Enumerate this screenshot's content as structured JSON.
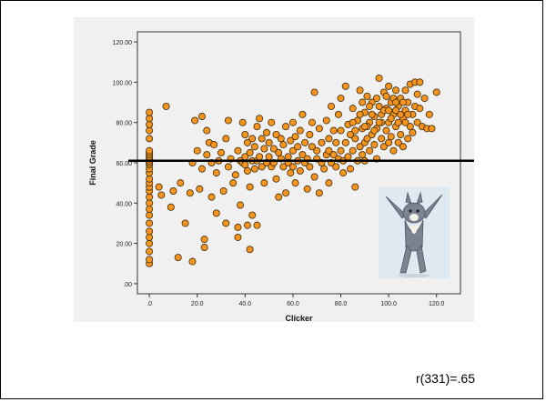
{
  "chart_data": {
    "type": "scatter",
    "xlabel": "Clicker",
    "ylabel": "Final Grade",
    "xlim": [
      -5,
      130
    ],
    "ylim": [
      -5,
      125
    ],
    "x_ticks": [
      ".0",
      "20.0",
      "40.0",
      "60.0",
      "80.0",
      "100.0",
      "120.0"
    ],
    "x_tick_values": [
      0,
      20,
      40,
      60,
      80,
      100,
      120
    ],
    "y_ticks": [
      ".00",
      "20.00",
      "40.00",
      "60.00",
      "80.00",
      "100.00",
      "120.00"
    ],
    "y_tick_values": [
      0,
      20,
      40,
      60,
      80,
      100,
      120
    ],
    "reference_line_y": 61,
    "marker_color": "#f7941d",
    "marker_edge": "#3a2a0a",
    "points": [
      [
        0,
        10
      ],
      [
        0,
        12
      ],
      [
        0,
        16
      ],
      [
        0,
        20
      ],
      [
        0,
        23
      ],
      [
        0,
        26
      ],
      [
        0,
        30
      ],
      [
        0,
        34
      ],
      [
        0,
        37
      ],
      [
        0,
        40
      ],
      [
        0,
        43
      ],
      [
        0,
        46
      ],
      [
        0,
        48
      ],
      [
        0,
        50
      ],
      [
        0,
        52
      ],
      [
        0,
        55
      ],
      [
        0,
        57
      ],
      [
        0,
        59
      ],
      [
        0,
        60
      ],
      [
        0,
        61
      ],
      [
        0,
        62
      ],
      [
        0,
        63
      ],
      [
        0,
        64
      ],
      [
        0,
        65
      ],
      [
        0,
        66
      ],
      [
        0,
        72
      ],
      [
        0,
        76
      ],
      [
        0,
        79
      ],
      [
        0,
        82
      ],
      [
        0,
        85
      ],
      [
        4,
        48
      ],
      [
        5,
        44
      ],
      [
        7,
        88
      ],
      [
        9,
        38
      ],
      [
        10,
        46
      ],
      [
        12,
        13
      ],
      [
        13,
        50
      ],
      [
        15,
        30
      ],
      [
        17,
        45
      ],
      [
        18,
        11
      ],
      [
        18,
        60
      ],
      [
        19,
        81
      ],
      [
        20,
        66
      ],
      [
        21,
        47
      ],
      [
        22,
        57
      ],
      [
        22,
        83
      ],
      [
        23,
        18
      ],
      [
        23,
        22
      ],
      [
        24,
        64
      ],
      [
        24,
        76
      ],
      [
        25,
        70
      ],
      [
        26,
        43
      ],
      [
        26,
        60
      ],
      [
        27,
        69
      ],
      [
        28,
        35
      ],
      [
        28,
        55
      ],
      [
        29,
        61
      ],
      [
        30,
        65
      ],
      [
        31,
        46
      ],
      [
        32,
        72
      ],
      [
        32,
        30
      ],
      [
        33,
        81
      ],
      [
        33,
        58
      ],
      [
        34,
        62
      ],
      [
        35,
        50
      ],
      [
        36,
        54
      ],
      [
        37,
        23
      ],
      [
        37,
        28
      ],
      [
        37,
        66
      ],
      [
        38,
        39
      ],
      [
        38,
        61
      ],
      [
        39,
        60
      ],
      [
        39,
        80
      ],
      [
        40,
        59
      ],
      [
        40,
        63
      ],
      [
        40,
        74
      ],
      [
        41,
        29
      ],
      [
        41,
        56
      ],
      [
        41,
        70
      ],
      [
        42,
        17
      ],
      [
        42,
        48
      ],
      [
        42,
        65
      ],
      [
        43,
        34
      ],
      [
        43,
        61
      ],
      [
        43,
        72
      ],
      [
        44,
        57
      ],
      [
        44,
        68
      ],
      [
        45,
        61
      ],
      [
        45,
        29
      ],
      [
        45,
        78
      ],
      [
        46,
        63
      ],
      [
        46,
        82
      ],
      [
        47,
        58
      ],
      [
        47,
        72
      ],
      [
        48,
        67
      ],
      [
        48,
        50
      ],
      [
        49,
        60
      ],
      [
        49,
        75
      ],
      [
        50,
        63
      ],
      [
        50,
        70
      ],
      [
        51,
        58
      ],
      [
        51,
        80
      ],
      [
        52,
        60
      ],
      [
        52,
        67
      ],
      [
        53,
        52
      ],
      [
        53,
        74
      ],
      [
        54,
        43
      ],
      [
        54,
        65
      ],
      [
        55,
        62
      ],
      [
        55,
        72
      ],
      [
        56,
        58
      ],
      [
        56,
        69
      ],
      [
        57,
        45
      ],
      [
        57,
        78
      ],
      [
        58,
        63
      ],
      [
        58,
        60
      ],
      [
        59,
        71
      ],
      [
        59,
        55
      ],
      [
        60,
        58
      ],
      [
        60,
        66
      ],
      [
        60,
        80
      ],
      [
        61,
        50
      ],
      [
        61,
        73
      ],
      [
        62,
        61
      ],
      [
        62,
        68
      ],
      [
        63,
        56
      ],
      [
        63,
        76
      ],
      [
        64,
        64
      ],
      [
        64,
        84
      ],
      [
        65,
        60
      ],
      [
        65,
        70
      ],
      [
        66,
        47
      ],
      [
        66,
        62
      ],
      [
        67,
        74
      ],
      [
        67,
        58
      ],
      [
        68,
        68
      ],
      [
        68,
        80
      ],
      [
        69,
        53
      ],
      [
        69,
        95
      ],
      [
        70,
        62
      ],
      [
        70,
        66
      ],
      [
        71,
        77
      ],
      [
        71,
        45
      ],
      [
        72,
        60
      ],
      [
        72,
        70
      ],
      [
        73,
        57
      ],
      [
        74,
        64
      ],
      [
        74,
        81
      ],
      [
        75,
        50
      ],
      [
        75,
        66
      ],
      [
        75,
        72
      ],
      [
        76,
        60
      ],
      [
        76,
        88
      ],
      [
        77,
        64
      ],
      [
        77,
        76
      ],
      [
        78,
        58
      ],
      [
        78,
        70
      ],
      [
        79,
        84
      ],
      [
        79,
        62
      ],
      [
        80,
        66
      ],
      [
        80,
        76
      ],
      [
        80,
        92
      ],
      [
        81,
        61
      ],
      [
        81,
        55
      ],
      [
        82,
        70
      ],
      [
        82,
        98
      ],
      [
        83,
        63
      ],
      [
        83,
        79
      ],
      [
        84,
        74
      ],
      [
        84,
        57
      ],
      [
        85,
        66
      ],
      [
        85,
        87
      ],
      [
        86,
        48
      ],
      [
        86,
        72
      ],
      [
        87,
        61
      ],
      [
        87,
        81
      ],
      [
        88,
        68
      ],
      [
        88,
        96
      ],
      [
        89,
        64
      ],
      [
        89,
        77
      ],
      [
        90,
        70
      ],
      [
        90,
        85
      ],
      [
        90,
        61
      ],
      [
        91,
        72
      ],
      [
        91,
        93
      ],
      [
        92,
        66
      ],
      [
        92,
        80
      ],
      [
        93,
        74
      ],
      [
        93,
        90
      ],
      [
        94,
        69
      ],
      [
        94,
        83
      ],
      [
        95,
        77
      ],
      [
        95,
        62
      ],
      [
        96,
        88
      ],
      [
        96,
        102
      ],
      [
        97,
        72
      ],
      [
        97,
        84
      ],
      [
        98,
        68
      ],
      [
        98,
        95
      ],
      [
        99,
        76
      ],
      [
        99,
        87
      ],
      [
        100,
        70
      ],
      [
        100,
        80
      ],
      [
        100,
        98
      ],
      [
        101,
        73
      ],
      [
        101,
        90
      ],
      [
        102,
        66
      ],
      [
        102,
        84
      ],
      [
        103,
        78
      ],
      [
        103,
        96
      ],
      [
        104,
        70
      ],
      [
        104,
        88
      ],
      [
        105,
        74
      ],
      [
        105,
        92
      ],
      [
        106,
        82
      ],
      [
        106,
        68
      ],
      [
        107,
        86
      ],
      [
        107,
        96
      ],
      [
        108,
        72
      ],
      [
        108,
        90
      ],
      [
        109,
        78
      ],
      [
        109,
        99
      ],
      [
        110,
        84
      ],
      [
        110,
        75
      ],
      [
        111,
        100
      ],
      [
        111,
        88
      ],
      [
        112,
        80
      ],
      [
        112,
        94
      ],
      [
        113,
        100
      ],
      [
        113,
        87
      ],
      [
        114,
        78
      ],
      [
        115,
        92
      ],
      [
        116,
        77
      ],
      [
        117,
        84
      ],
      [
        118,
        77
      ],
      [
        120,
        95
      ],
      [
        91,
        78
      ],
      [
        92,
        88
      ],
      [
        94,
        76
      ],
      [
        95,
        92
      ],
      [
        97,
        80
      ],
      [
        98,
        86
      ],
      [
        99,
        93
      ],
      [
        101,
        82
      ],
      [
        102,
        92
      ],
      [
        103,
        86
      ],
      [
        104,
        80
      ],
      [
        105,
        84
      ],
      [
        106,
        90
      ],
      [
        107,
        80
      ],
      [
        108,
        84
      ],
      [
        86,
        76
      ],
      [
        85,
        80
      ],
      [
        88,
        84
      ],
      [
        89,
        90
      ],
      [
        90,
        78
      ],
      [
        93,
        84
      ],
      [
        96,
        80
      ],
      [
        100,
        86
      ],
      [
        103,
        90
      ]
    ]
  },
  "image": {
    "name": "cat-photo"
  },
  "stat_text": "r(331)=.65"
}
